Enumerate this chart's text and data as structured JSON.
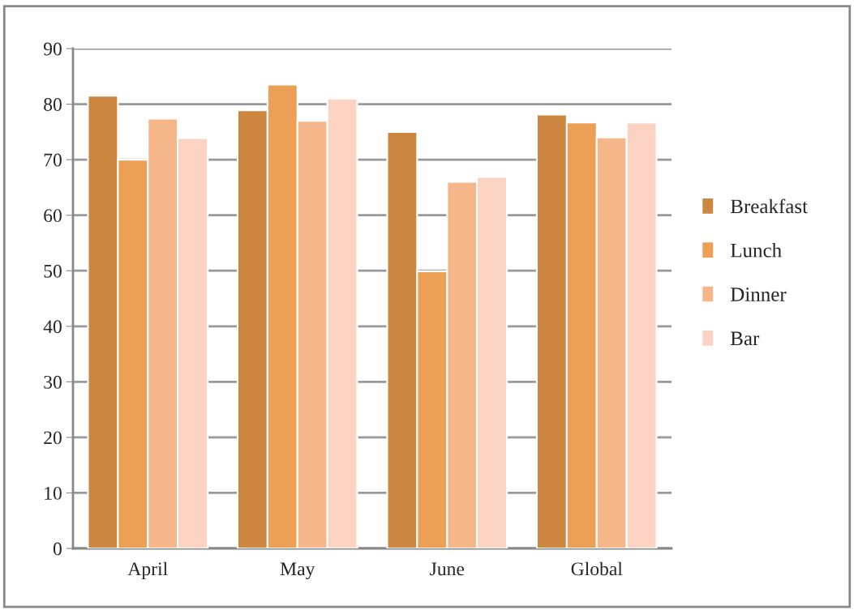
{
  "chart_data": {
    "type": "bar",
    "categories": [
      "April",
      "May",
      "June",
      "Global"
    ],
    "series": [
      {
        "name": "Breakfast",
        "color": "#cd8640",
        "values": [
          81.5,
          78.9,
          75,
          78.1
        ]
      },
      {
        "name": "Lunch",
        "color": "#eba055",
        "values": [
          70,
          83.5,
          49.9,
          76.7
        ]
      },
      {
        "name": "Dinner",
        "color": "#f5b78a",
        "values": [
          77.4,
          77,
          66,
          74
        ]
      },
      {
        "name": "Bar",
        "color": "#fbd3c3",
        "values": [
          73.9,
          81,
          66.9,
          76.7
        ]
      }
    ],
    "ylim": [
      0,
      90
    ],
    "yticks": [
      0,
      10,
      20,
      30,
      40,
      50,
      60,
      70,
      80,
      90
    ],
    "grid": "y",
    "legend": "right"
  }
}
